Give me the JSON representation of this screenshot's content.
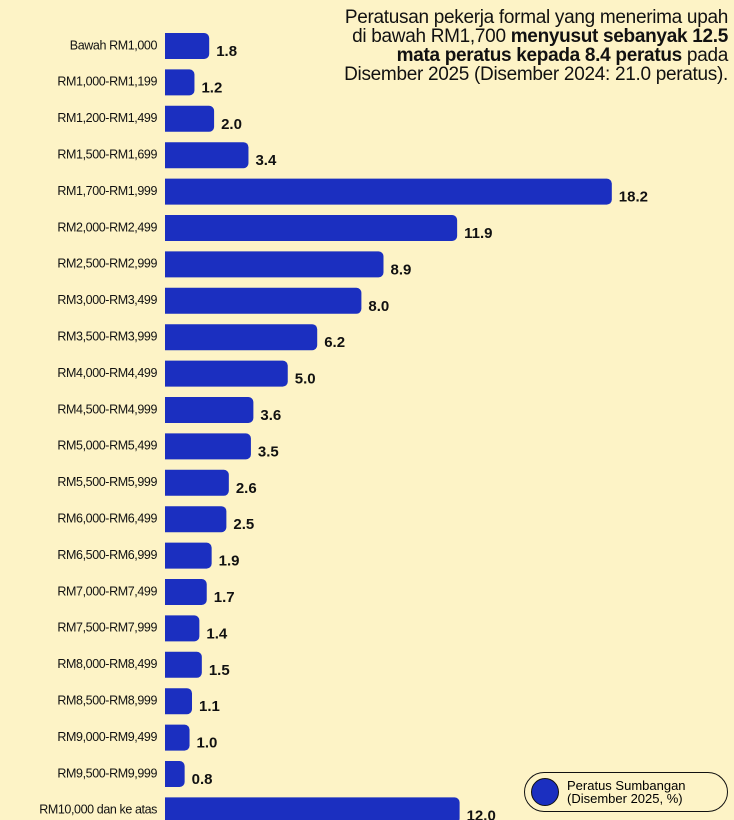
{
  "chart_data": {
    "type": "barh",
    "annotation": {
      "before": "Peratusan pekerja formal yang menerima upah di bawah RM1,700",
      "bold": "menyusut sebanyak 12.5 mata peratus kepada 8.4 peratus",
      "after": "pada Disember 2025 (Disember 2024: 21.0 peratus)."
    },
    "categories": [
      "Bawah RM1,000",
      "RM1,000-RM1,199",
      "RM1,200-RM1,499",
      "RM1,500-RM1,699",
      "RM1,700-RM1,999",
      "RM2,000-RM2,499",
      "RM2,500-RM2,999",
      "RM3,000-RM3,499",
      "RM3,500-RM3,999",
      "RM4,000-RM4,499",
      "RM4,500-RM4,999",
      "RM5,000-RM5,499",
      "RM5,500-RM5,999",
      "RM6,000-RM6,499",
      "RM6,500-RM6,999",
      "RM7,000-RM7,499",
      "RM7,500-RM7,999",
      "RM8,000-RM8,499",
      "RM8,500-RM8,999",
      "RM9,000-RM9,499",
      "RM9,500-RM9,999",
      "RM10,000 dan ke atas"
    ],
    "series": [
      {
        "name": "Peratus Sumbangan (Disember 2025, %)",
        "color": "#1b2fc0",
        "values": [
          1.8,
          1.2,
          2.0,
          3.4,
          18.2,
          11.9,
          8.9,
          8.0,
          6.2,
          5.0,
          3.6,
          3.5,
          2.6,
          2.5,
          1.9,
          1.7,
          1.4,
          1.5,
          1.1,
          1.0,
          0.8,
          12.0
        ],
        "value_labels": [
          "1.8",
          "1.2",
          "2.0",
          "3.4",
          "18.2",
          "11.9",
          "8.9",
          "8.0",
          "6.2",
          "5.0",
          "3.6",
          "3.5",
          "2.6",
          "2.5",
          "1.9",
          "1.7",
          "1.4",
          "1.5",
          "1.1",
          "1.0",
          "0.8",
          "12.0"
        ]
      }
    ],
    "xlim": [
      0,
      20
    ],
    "legend": "bottom-right"
  }
}
